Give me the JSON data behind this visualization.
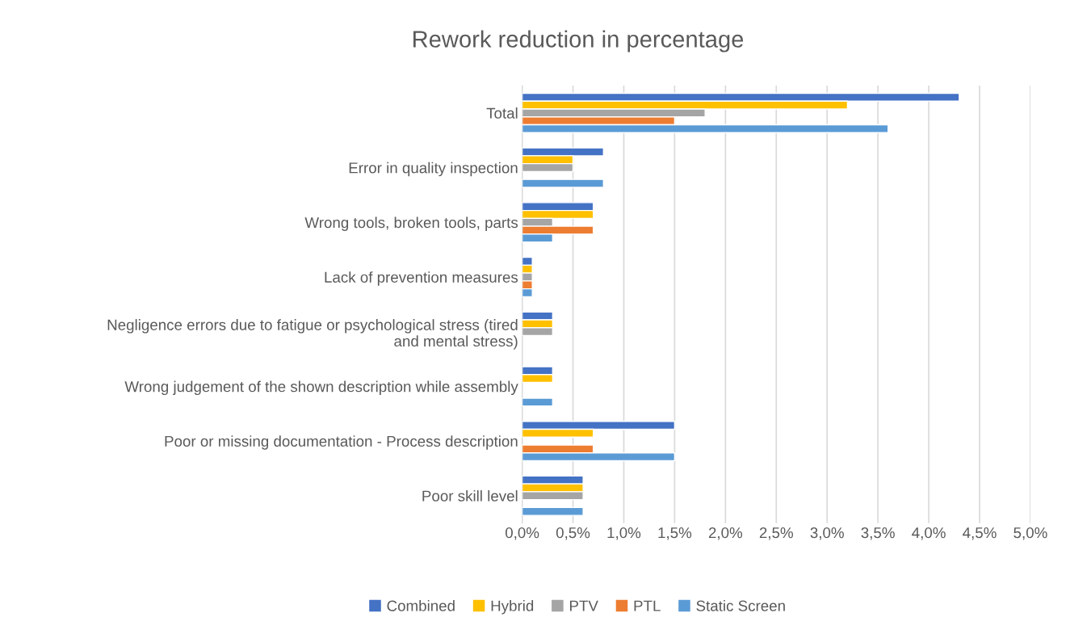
{
  "chart_data": {
    "type": "bar",
    "orientation": "horizontal",
    "title": "Rework reduction in percentage",
    "categories": [
      "Total",
      "Error in quality inspection",
      "Wrong tools, broken tools, parts",
      "Lack of prevention measures",
      "Negligence errors due to fatigue or psychological stress (tired\nand mental stress)",
      "Wrong judgement of the shown description while assembly",
      "Poor or missing documentation - Process description",
      "Poor skill level"
    ],
    "series": [
      {
        "name": "Combined",
        "color": "#4472c4",
        "values": [
          4.3,
          0.8,
          0.7,
          0.1,
          0.3,
          0.3,
          1.5,
          0.6
        ]
      },
      {
        "name": "Hybrid",
        "color": "#ffc000",
        "values": [
          3.2,
          0.5,
          0.7,
          0.1,
          0.3,
          0.3,
          0.7,
          0.6
        ]
      },
      {
        "name": "PTV",
        "color": "#a5a5a5",
        "values": [
          1.8,
          0.5,
          0.3,
          0.1,
          0.3,
          null,
          null,
          0.6
        ]
      },
      {
        "name": "PTL",
        "color": "#ed7d31",
        "values": [
          1.5,
          null,
          0.7,
          0.1,
          null,
          null,
          0.7,
          null
        ]
      },
      {
        "name": "Static Screen",
        "color": "#5b9bd5",
        "values": [
          3.6,
          0.8,
          0.3,
          0.1,
          null,
          0.3,
          1.5,
          0.6
        ]
      }
    ],
    "xlim": [
      0,
      5.0
    ],
    "xticks": [
      {
        "value": 0,
        "label": "0,0%"
      },
      {
        "value": 0.5,
        "label": "0,5%"
      },
      {
        "value": 1.0,
        "label": "1,0%"
      },
      {
        "value": 1.5,
        "label": "1,5%"
      },
      {
        "value": 2.0,
        "label": "2,0%"
      },
      {
        "value": 2.5,
        "label": "2,5%"
      },
      {
        "value": 3.0,
        "label": "3,0%"
      },
      {
        "value": 3.5,
        "label": "3,5%"
      },
      {
        "value": 4.0,
        "label": "4,0%"
      },
      {
        "value": 4.5,
        "label": "4,5%"
      },
      {
        "value": 5.0,
        "label": "5,0%"
      }
    ],
    "grid": "x",
    "legend": "bottom"
  }
}
